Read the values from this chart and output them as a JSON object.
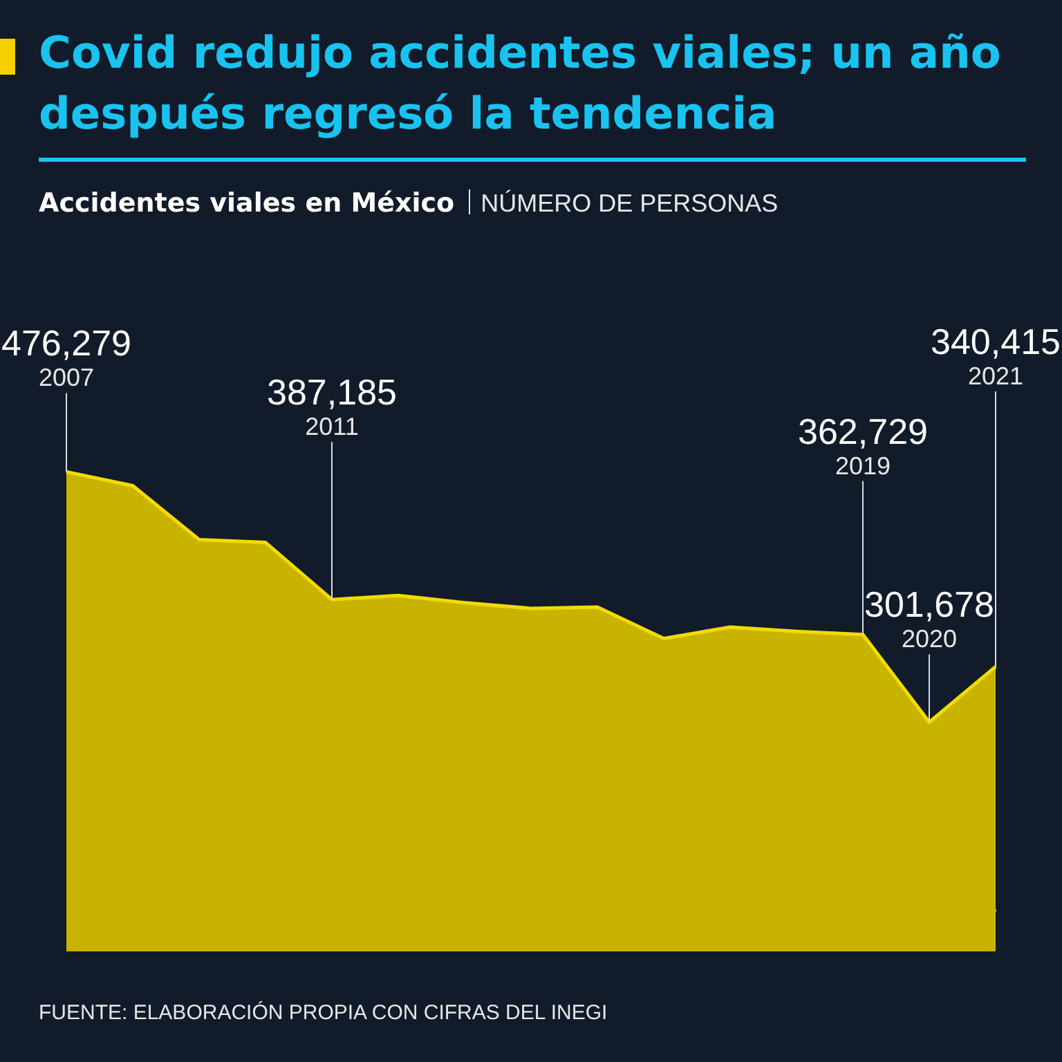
{
  "chart_data": {
    "type": "area",
    "title": "Covid redujo accidentes viales; un año después regresó la tendencia",
    "subtitle": "Accidentes viales en México",
    "categories": [
      "2007",
      null,
      null,
      null,
      "2011",
      null,
      null,
      null,
      null,
      null,
      null,
      null,
      "2019",
      "2020",
      "2021"
    ],
    "values": [
      476279,
      466600,
      429000,
      427000,
      387185,
      390000,
      385000,
      381000,
      382000,
      360000,
      368000,
      365000,
      362729,
      301678,
      340415
    ],
    "value_labels": [
      "476,279",
      null,
      null,
      null,
      "387,185",
      null,
      null,
      null,
      null,
      null,
      null,
      null,
      "362,729",
      "301,678",
      "340,415"
    ],
    "color": "#c8b400",
    "tick_labels": false,
    "annotations": [
      "NÚMERO DE PERSONAS",
      "FUENTE: ELABORACIÓN PROPIA CON CIFRAS DEL INEGI"
    ]
  }
}
